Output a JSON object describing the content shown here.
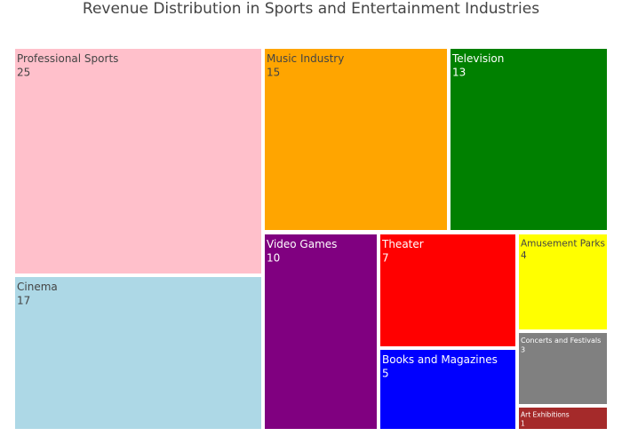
{
  "chart_data": {
    "type": "treemap",
    "title": "Revenue Distribution in Sports and Entertainment Industries",
    "items": [
      {
        "label": "Professional Sports",
        "value": 25,
        "color": "#FFC0CB"
      },
      {
        "label": "Cinema",
        "value": 17,
        "color": "#ADD8E6"
      },
      {
        "label": "Music Industry",
        "value": 15,
        "color": "#FFA500"
      },
      {
        "label": "Television",
        "value": 13,
        "color": "#008000"
      },
      {
        "label": "Video Games",
        "value": 10,
        "color": "#800080"
      },
      {
        "label": "Theater",
        "value": 7,
        "color": "#FF0000"
      },
      {
        "label": "Books and Magazines",
        "value": 5,
        "color": "#0000FF"
      },
      {
        "label": "Amusement Parks",
        "value": 4,
        "color": "#FFFF00"
      },
      {
        "label": "Concerts and Festivals",
        "value": 3,
        "color": "#808080"
      },
      {
        "label": "Art Exhibitions",
        "value": 1,
        "color": "#A52A2A"
      }
    ]
  }
}
